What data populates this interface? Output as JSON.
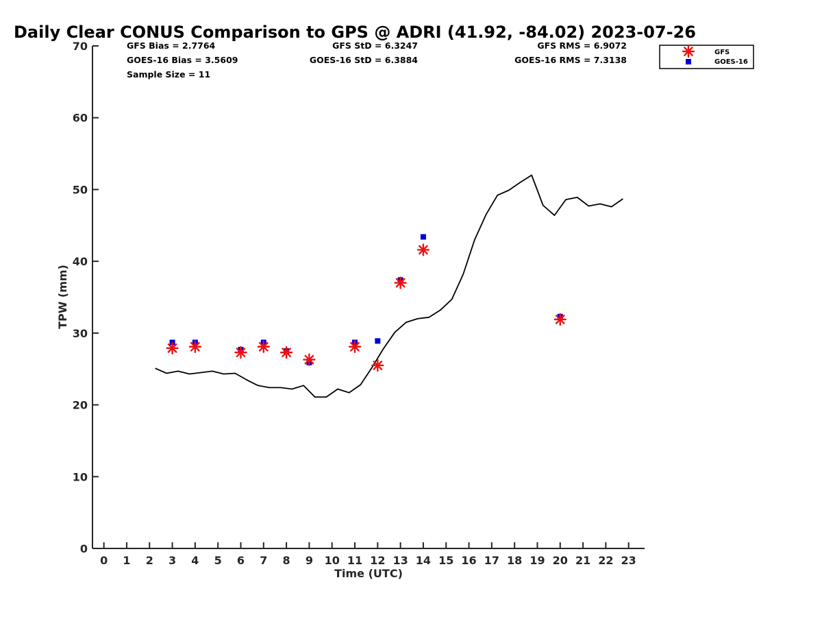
{
  "chart_data": {
    "type": "scatter",
    "title": "Daily Clear CONUS Comparison to GPS @ ADRI (41.92, -84.02) 2023-07-26",
    "xlabel": "Time (UTC)",
    "ylabel": "TPW (mm)",
    "xlim": [
      -0.5,
      23.7
    ],
    "ylim": [
      0,
      70
    ],
    "xticks": [
      0,
      1,
      2,
      3,
      4,
      5,
      6,
      7,
      8,
      9,
      10,
      11,
      12,
      13,
      14,
      15,
      16,
      17,
      18,
      19,
      20,
      21,
      22,
      23
    ],
    "yticks": [
      0,
      10,
      20,
      30,
      40,
      50,
      60,
      70
    ],
    "grid": false,
    "legend_position": "top-right",
    "stats": {
      "gfs_bias": "GFS Bias = 2.7764",
      "goes_bias": "GOES-16 Bias = 3.5609",
      "sample_size": "Sample Size = 11",
      "gfs_std": "GFS StD = 6.3247",
      "goes_std": "GOES-16 StD = 6.3884",
      "gfs_rms": "GFS RMS = 6.9072",
      "goes_rms": "GOES-16 RMS = 7.3138"
    },
    "series": [
      {
        "name": "GPS",
        "kind": "line",
        "color": "#000000",
        "x": [
          2.25,
          2.75,
          3.25,
          3.75,
          4.25,
          4.75,
          5.25,
          5.75,
          6.25,
          6.75,
          7.25,
          7.75,
          8.25,
          8.75,
          9.25,
          9.75,
          10.25,
          10.75,
          11.25,
          11.75,
          12.25,
          12.75,
          13.25,
          13.75,
          14.25,
          14.75,
          15.25,
          15.75,
          16.25,
          16.75,
          17.25,
          17.75,
          18.25,
          18.75,
          19.25,
          19.75,
          20.25,
          20.75,
          21.25,
          21.75,
          22.25,
          22.75
        ],
        "y": [
          25.1,
          24.4,
          24.7,
          24.3,
          24.5,
          24.7,
          24.3,
          24.4,
          23.5,
          22.7,
          22.4,
          22.4,
          22.2,
          22.7,
          21.1,
          21.1,
          22.2,
          21.7,
          22.8,
          25.2,
          27.8,
          30.1,
          31.5,
          32.0,
          32.2,
          33.2,
          34.7,
          38.2,
          43.0,
          46.5,
          49.2,
          49.9,
          51.0,
          52.0,
          47.8,
          46.4,
          48.6,
          48.9,
          47.7,
          48.0,
          47.6,
          48.7
        ]
      },
      {
        "name": "GFS",
        "kind": "scatter",
        "marker": "asterisk",
        "color": "#ee1111",
        "x": [
          3,
          4,
          6,
          7,
          8,
          9,
          11,
          12,
          13,
          14,
          20
        ],
        "y": [
          27.9,
          28.1,
          27.3,
          28.1,
          27.3,
          26.3,
          28.1,
          25.5,
          37.0,
          41.6,
          31.9
        ]
      },
      {
        "name": "GOES-16",
        "kind": "scatter",
        "marker": "square",
        "color": "#0000dd",
        "x": [
          3,
          4,
          6,
          7,
          8,
          9,
          11,
          12,
          13,
          14,
          20
        ],
        "y": [
          28.7,
          28.7,
          27.7,
          28.7,
          27.5,
          25.9,
          28.7,
          28.9,
          37.4,
          43.4,
          32.3
        ]
      }
    ]
  }
}
